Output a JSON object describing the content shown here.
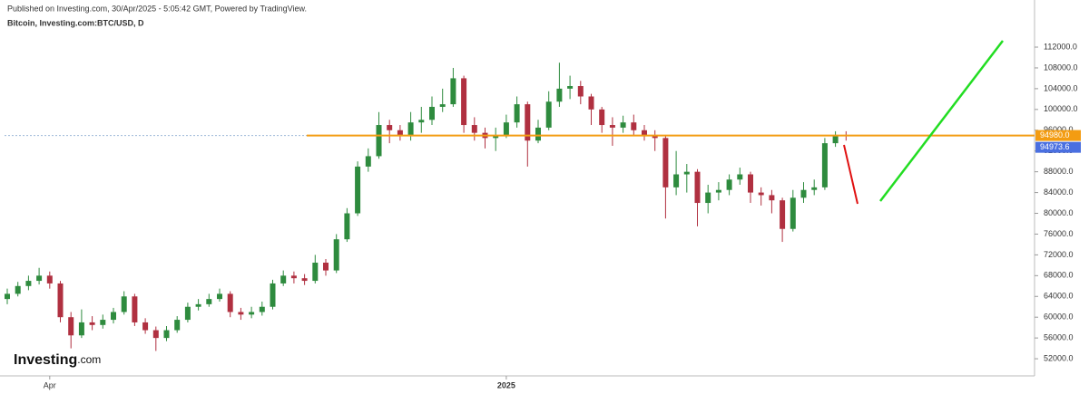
{
  "header": {
    "published": "Published on Investing.com, 30/Apr/2025 - 5:05:42 GMT, Powered by TradingView.",
    "symbol": "Bitcoin, Investing.com:BTC/USD, D"
  },
  "logo": {
    "name": "Investing",
    "suffix": ".com"
  },
  "chart_data": {
    "type": "candlestick",
    "categories": [
      null,
      null,
      null,
      null,
      "Apr",
      null,
      null,
      null,
      null,
      null,
      null,
      null,
      null,
      null,
      null,
      null,
      null,
      null,
      null,
      null,
      null,
      null,
      null,
      null,
      null,
      null,
      null,
      null,
      null,
      null,
      null,
      null,
      null,
      null,
      null,
      null,
      null,
      null,
      null,
      null,
      null,
      null,
      null,
      null,
      null,
      null,
      null,
      "2025",
      null,
      null,
      null,
      null,
      null,
      null,
      null,
      null,
      null,
      null,
      null,
      null,
      null,
      null,
      null,
      null,
      null,
      null,
      null,
      null,
      null,
      null,
      null,
      null,
      null,
      null,
      null,
      null,
      null,
      null,
      null,
      null
    ],
    "open": [
      63500,
      64500,
      66000,
      67000,
      68000,
      66500,
      60000,
      56500,
      59000,
      58500,
      59500,
      61000,
      64000,
      59000,
      57500,
      56000,
      57500,
      59500,
      62000,
      62500,
      63500,
      64500,
      61000,
      60500,
      61000,
      62000,
      66500,
      68000,
      67500,
      67000,
      70500,
      69000,
      75000,
      80000,
      89000,
      91000,
      97000,
      96000,
      95000,
      97500,
      98000,
      100500,
      101000,
      106000,
      97000,
      95500,
      94500,
      95000,
      97500,
      101000,
      94000,
      96500,
      101500,
      104000,
      104500,
      102500,
      100000,
      97000,
      96500,
      97500,
      96000,
      95000,
      94500,
      85000,
      87500,
      88000,
      82000,
      84000,
      84500,
      86500,
      87500,
      84000,
      83500,
      82500,
      77000,
      83000,
      84500,
      85000,
      93500,
      95000
    ],
    "high": [
      65500,
      66800,
      68000,
      69500,
      68800,
      67000,
      61000,
      61500,
      60200,
      60500,
      61800,
      65000,
      64500,
      59800,
      58200,
      58300,
      60200,
      62800,
      63500,
      64500,
      65500,
      65000,
      61800,
      62000,
      63000,
      67200,
      69000,
      68800,
      68300,
      72000,
      71200,
      76000,
      81000,
      90000,
      92500,
      99500,
      98000,
      97000,
      99500,
      100500,
      102500,
      104000,
      108000,
      106500,
      98500,
      96500,
      96500,
      99000,
      102500,
      101500,
      98000,
      103500,
      109000,
      106500,
      105500,
      103000,
      100500,
      98500,
      98800,
      99000,
      97000,
      96000,
      95000,
      92000,
      89500,
      88500,
      85500,
      86000,
      87500,
      88800,
      88000,
      85000,
      84500,
      83000,
      84500,
      86000,
      86500,
      94500,
      95800,
      95800
    ],
    "low": [
      62500,
      64000,
      65200,
      66300,
      65500,
      59000,
      54000,
      56000,
      57500,
      57800,
      58800,
      60500,
      58300,
      56800,
      53500,
      55400,
      57000,
      59000,
      61300,
      62000,
      63000,
      60000,
      59500,
      59800,
      60300,
      61500,
      66000,
      66500,
      66200,
      66500,
      68000,
      68500,
      74500,
      79500,
      88000,
      90500,
      93500,
      94000,
      94000,
      95500,
      97000,
      99500,
      100500,
      95500,
      94000,
      92500,
      92000,
      94500,
      96500,
      89000,
      93500,
      96000,
      100500,
      102000,
      101000,
      97000,
      95500,
      93000,
      95500,
      95000,
      94000,
      92000,
      79000,
      83500,
      84000,
      77500,
      80000,
      82500,
      83500,
      85500,
      82000,
      81500,
      80000,
      74500,
      76500,
      82000,
      83500,
      84500,
      92800,
      94000
    ],
    "close": [
      64500,
      66000,
      67000,
      68000,
      66500,
      60000,
      56500,
      59000,
      58500,
      59500,
      61000,
      64000,
      59000,
      57500,
      56000,
      57500,
      59500,
      62000,
      62500,
      63500,
      64500,
      61000,
      60500,
      61000,
      62000,
      66500,
      68000,
      67500,
      67000,
      70500,
      69000,
      75000,
      80000,
      89000,
      91000,
      97000,
      96000,
      95000,
      97500,
      98000,
      100500,
      101000,
      106000,
      97000,
      95500,
      94500,
      95000,
      97500,
      101000,
      94000,
      96500,
      101500,
      104000,
      104500,
      102500,
      100000,
      97000,
      96500,
      97500,
      96000,
      95000,
      94500,
      85000,
      87500,
      88000,
      82000,
      84000,
      84500,
      86500,
      87500,
      84000,
      83500,
      82500,
      77000,
      83000,
      84500,
      85000,
      93500,
      95000,
      94973.6
    ],
    "up_color": "#2e8b3e",
    "down_color": "#b03040",
    "ylim": [
      48700,
      120200
    ],
    "yticks": [
      {
        "value": 52000,
        "label": "52000.0"
      },
      {
        "value": 56000,
        "label": "56000.0"
      },
      {
        "value": 60000,
        "label": "60000.0"
      },
      {
        "value": 64000,
        "label": "64000.0"
      },
      {
        "value": 68000,
        "label": "68000.0"
      },
      {
        "value": 72000,
        "label": "72000.0"
      },
      {
        "value": 76000,
        "label": "76000.0"
      },
      {
        "value": 80000,
        "label": "80000.0"
      },
      {
        "value": 84000,
        "label": "84000.0"
      },
      {
        "value": 88000,
        "label": "88000.0"
      },
      {
        "value": 92000,
        "label": "92000.0"
      },
      {
        "value": 96000,
        "label": "96000.0"
      },
      {
        "value": 100000,
        "label": "100000.0"
      },
      {
        "value": 104000,
        "label": "104000.0"
      },
      {
        "value": 108000,
        "label": "108000.0"
      },
      {
        "value": 112000,
        "label": "112000.0"
      }
    ],
    "price_line": {
      "value": 94980,
      "label": "94980.0",
      "color": "#f39c12"
    },
    "last_price": {
      "value": 94973.6,
      "label": "94973.6",
      "color": "#4a6fe0"
    }
  }
}
